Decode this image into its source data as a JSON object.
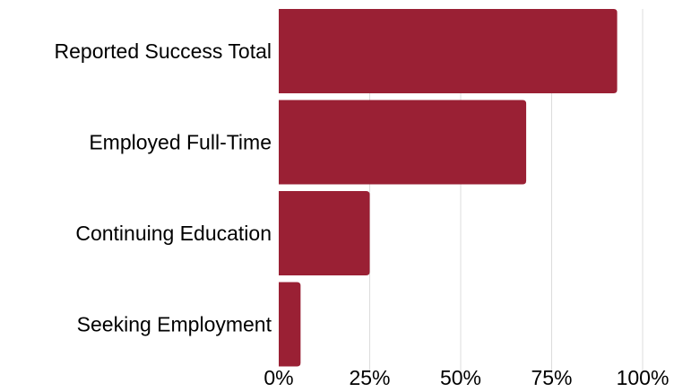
{
  "chart_data": {
    "type": "bar",
    "orientation": "horizontal",
    "categories": [
      "Reported Success Total",
      "Employed Full-Time",
      "Continuing Education",
      "Seeking Employment"
    ],
    "values": [
      93,
      68,
      25,
      6
    ],
    "unit": "%",
    "xlim": [
      0,
      100
    ],
    "xticks": [
      0,
      25,
      50,
      75,
      100
    ],
    "xtick_labels": [
      "0%",
      "25%",
      "50%",
      "75%",
      "100%"
    ],
    "bar_color": "#9a2034",
    "grid": true,
    "grid_color": "#dcdcdc",
    "legend": "none"
  }
}
